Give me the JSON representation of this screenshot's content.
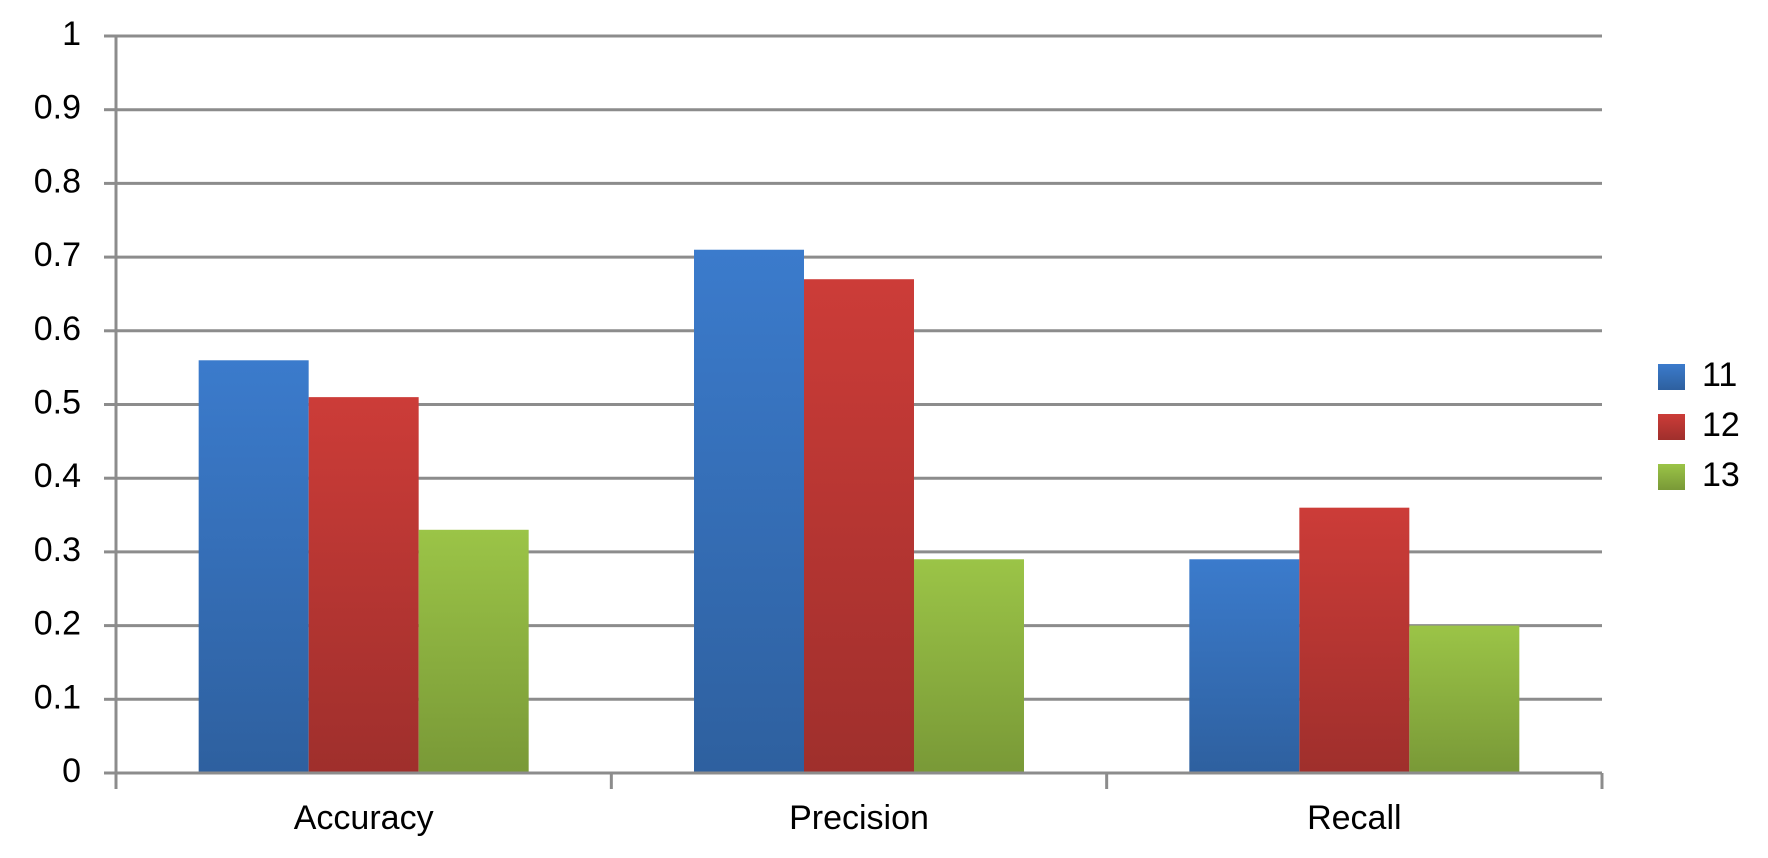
{
  "chart_data": {
    "type": "bar",
    "categories": [
      "Accuracy",
      "Precision",
      "Recall"
    ],
    "series": [
      {
        "name": "11",
        "color": "#3b7bcc",
        "values": [
          0.56,
          0.71,
          0.29
        ]
      },
      {
        "name": "12",
        "color": "#cc3c38",
        "values": [
          0.51,
          0.67,
          0.36
        ]
      },
      {
        "name": "13",
        "color": "#9bc447",
        "values": [
          0.33,
          0.29,
          0.2
        ]
      }
    ],
    "ylim": [
      0,
      1
    ],
    "yticks": [
      0,
      0.1,
      0.2,
      0.3,
      0.4,
      0.5,
      0.6,
      0.7,
      0.8,
      0.9,
      1
    ],
    "grid": true,
    "legend": "right"
  }
}
